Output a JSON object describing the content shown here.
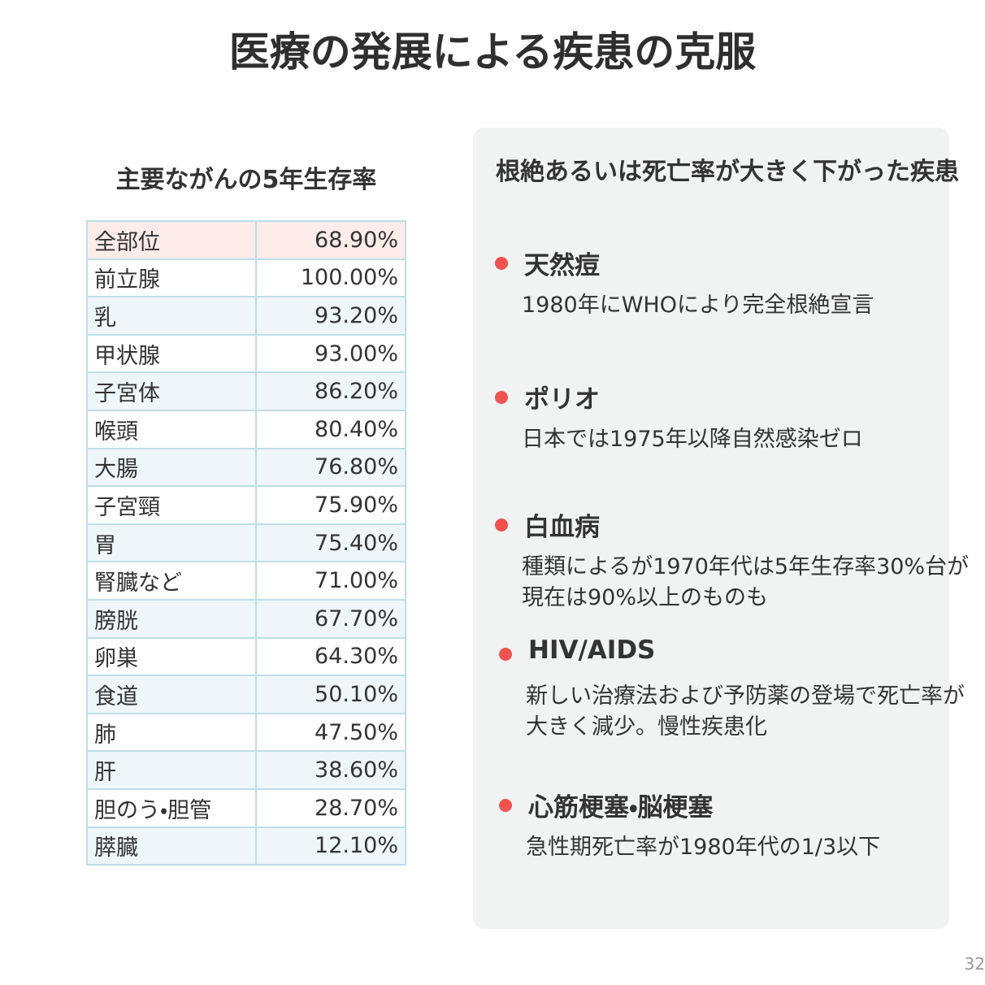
{
  "header": {
    "title": "医療の発展による疾患の克服"
  },
  "table": {
    "title": "主要ながんの5年生存率",
    "rows": [
      [
        "全部位",
        "68.90%"
      ],
      [
        "前立腺",
        "100.00%"
      ],
      [
        "乳",
        "93.20%"
      ],
      [
        "甲状腺",
        "93.00%"
      ],
      [
        "子宮体",
        "86.20%"
      ],
      [
        "喉頭",
        "80.40%"
      ],
      [
        "大腸",
        "76.80%"
      ],
      [
        "子宮頸",
        "75.90%"
      ],
      [
        "胃",
        "75.40%"
      ],
      [
        "腎臓など",
        "71.00%"
      ],
      [
        "膀胱",
        "67.70%"
      ],
      [
        "卵巣",
        "64.30%"
      ],
      [
        "食道",
        "50.10%"
      ],
      [
        "肺",
        "47.50%"
      ],
      [
        "肝",
        "38.60%"
      ],
      [
        "胆のう・胆管",
        "28.70%"
      ],
      [
        "膵臓",
        "12.10%"
      ]
    ]
  },
  "panel": {
    "title": "根絶あるいは死亡率が大きく下がった疾患",
    "items": [
      {
        "name": "天然痘",
        "lines": [
          "1980年にWHOにより完全根絶宣言"
        ]
      },
      {
        "name": "ポリオ",
        "lines": [
          "日本では1975年以降自然感染ゼロ"
        ]
      },
      {
        "name": "白血病",
        "lines": [
          "種類によるが1970年代は5年生存率30%台が",
          "現在は90%以上のものも"
        ]
      },
      {
        "name": "HIV/AIDS",
        "lines": [
          "新しい治療法および予防薬の登場で死亡率が",
          "大きく減少。慢性疾患化"
        ]
      },
      {
        "name": "心筋梗塞・脳梗塞",
        "lines": [
          "急性期死亡率が1980年代の1/3以下"
        ]
      }
    ]
  },
  "footer": {
    "page": "32"
  }
}
